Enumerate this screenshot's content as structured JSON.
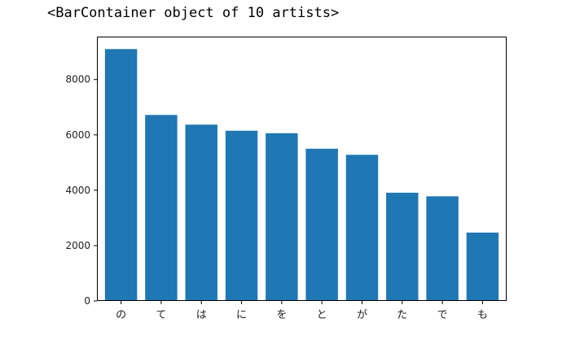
{
  "output_text": "<BarContainer object of 10 artists>",
  "chart_data": {
    "type": "bar",
    "categories": [
      "の",
      "て",
      "は",
      "に",
      "を",
      "と",
      "が",
      "た",
      "で",
      "も"
    ],
    "values": [
      9100,
      6720,
      6370,
      6150,
      6060,
      5500,
      5280,
      3910,
      3780,
      2470
    ],
    "ylim": [
      0,
      9550
    ],
    "yticks": [
      0,
      2000,
      4000,
      6000,
      8000
    ],
    "bar_color": "#1f77b4",
    "grid": false,
    "legend": "none"
  }
}
